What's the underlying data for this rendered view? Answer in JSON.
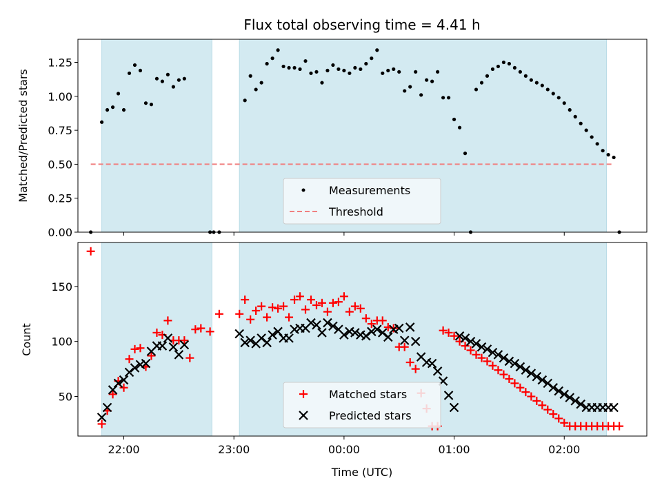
{
  "chart_data": [
    {
      "type": "scatter",
      "title": "Flux total observing time = 4.41 h",
      "xlabel": "",
      "ylabel": "Matched/Predicted stars",
      "xlim": [
        "21:35",
        "02:45"
      ],
      "ylim": [
        0,
        1.42
      ],
      "yticks": [
        "0.00",
        "0.25",
        "0.50",
        "0.75",
        "1.00",
        "1.25"
      ],
      "shaded_regions": [
        [
          "21:48",
          "22:48"
        ],
        [
          "23:03",
          "02:23"
        ]
      ],
      "shade_color": "#d3eaf1",
      "legend": {
        "position": "lower-center",
        "entries": [
          "Measurements",
          "Threshold"
        ]
      },
      "series": [
        {
          "name": "Measurements",
          "color": "#000000",
          "marker": "dot",
          "x": [
            "21:42",
            "21:48",
            "21:51",
            "21:54",
            "21:57",
            "22:00",
            "22:03",
            "22:06",
            "22:09",
            "22:12",
            "22:15",
            "22:18",
            "22:21",
            "22:24",
            "22:27",
            "22:30",
            "22:33",
            "22:47",
            "22:49",
            "22:52",
            "23:06",
            "23:09",
            "23:12",
            "23:15",
            "23:18",
            "23:21",
            "23:24",
            "23:27",
            "23:30",
            "23:33",
            "23:36",
            "23:39",
            "23:42",
            "23:45",
            "23:48",
            "23:51",
            "23:54",
            "23:57",
            "00:00",
            "00:03",
            "00:06",
            "00:09",
            "00:12",
            "00:15",
            "00:18",
            "00:21",
            "00:24",
            "00:27",
            "00:30",
            "00:33",
            "00:36",
            "00:39",
            "00:42",
            "00:45",
            "00:48",
            "00:51",
            "00:54",
            "00:57",
            "01:00",
            "01:03",
            "01:06",
            "01:09",
            "01:12",
            "01:15",
            "01:18",
            "01:21",
            "01:24",
            "01:27",
            "01:30",
            "01:33",
            "01:36",
            "01:39",
            "01:42",
            "01:45",
            "01:48",
            "01:51",
            "01:54",
            "01:57",
            "02:00",
            "02:03",
            "02:06",
            "02:09",
            "02:12",
            "02:15",
            "02:18",
            "02:21",
            "02:24",
            "02:27",
            "02:30"
          ],
          "y": [
            0.0,
            0.81,
            0.9,
            0.92,
            1.02,
            0.9,
            1.17,
            1.23,
            1.19,
            0.95,
            0.94,
            1.13,
            1.11,
            1.16,
            1.07,
            1.12,
            1.13,
            0.0,
            0.0,
            0.0,
            0.97,
            1.15,
            1.05,
            1.1,
            1.24,
            1.28,
            1.34,
            1.22,
            1.21,
            1.21,
            1.2,
            1.26,
            1.17,
            1.18,
            1.1,
            1.19,
            1.23,
            1.2,
            1.19,
            1.17,
            1.21,
            1.2,
            1.24,
            1.28,
            1.34,
            1.17,
            1.19,
            1.2,
            1.18,
            1.04,
            1.07,
            1.18,
            1.01,
            1.12,
            1.11,
            1.18,
            0.99,
            0.99,
            0.83,
            0.77,
            0.58,
            0.0,
            1.05,
            1.1,
            1.15,
            1.2,
            1.22,
            1.25,
            1.24,
            1.21,
            1.18,
            1.15,
            1.12,
            1.1,
            1.08,
            1.05,
            1.02,
            0.99,
            0.95,
            0.9,
            0.85,
            0.8,
            0.75,
            0.7,
            0.65,
            0.6,
            0.57,
            0.55,
            0.0
          ]
        },
        {
          "name": "Threshold",
          "color": "#f08080",
          "style": "dashed",
          "x": [
            "21:42",
            "02:27"
          ],
          "y": [
            0.5,
            0.5
          ]
        }
      ]
    },
    {
      "type": "scatter",
      "title": "",
      "xlabel": "Time (UTC)",
      "ylabel": "Count",
      "xlim": [
        "21:35",
        "02:45"
      ],
      "ylim": [
        14,
        190
      ],
      "yticks": [
        "50",
        "100",
        "150"
      ],
      "xticks": [
        "22:00",
        "23:00",
        "00:00",
        "01:00",
        "02:00"
      ],
      "shaded_regions": [
        [
          "21:48",
          "22:48"
        ],
        [
          "23:03",
          "02:23"
        ]
      ],
      "legend": {
        "position": "lower-center",
        "entries": [
          "Matched stars",
          "Predicted stars"
        ]
      },
      "series": [
        {
          "name": "Matched stars",
          "color": "#ff0000",
          "marker": "plus",
          "x": [
            "21:42",
            "21:48",
            "21:51",
            "21:54",
            "21:57",
            "22:00",
            "22:03",
            "22:06",
            "22:09",
            "22:12",
            "22:15",
            "22:18",
            "22:21",
            "22:24",
            "22:27",
            "22:30",
            "22:33",
            "22:36",
            "22:39",
            "22:42",
            "22:47",
            "22:52",
            "23:03",
            "23:06",
            "23:09",
            "23:12",
            "23:15",
            "23:18",
            "23:21",
            "23:24",
            "23:27",
            "23:30",
            "23:33",
            "23:36",
            "23:39",
            "23:42",
            "23:45",
            "23:48",
            "23:51",
            "23:54",
            "23:57",
            "00:00",
            "00:03",
            "00:06",
            "00:09",
            "00:12",
            "00:15",
            "00:18",
            "00:21",
            "00:24",
            "00:27",
            "00:30",
            "00:33",
            "00:36",
            "00:39",
            "00:42",
            "00:45",
            "00:48",
            "00:51",
            "00:54",
            "00:57",
            "01:00",
            "01:03",
            "01:06",
            "01:09",
            "01:12",
            "01:15",
            "01:18",
            "01:21",
            "01:24",
            "01:27",
            "01:30",
            "01:33",
            "01:36",
            "01:39",
            "01:42",
            "01:45",
            "01:48",
            "01:51",
            "01:54",
            "01:57",
            "02:00",
            "02:03",
            "02:06",
            "02:09",
            "02:12",
            "02:15",
            "02:18",
            "02:21",
            "02:24",
            "02:27",
            "02:30"
          ],
          "y": [
            182,
            25,
            37,
            52,
            64,
            58,
            84,
            93,
            94,
            77,
            87,
            108,
            106,
            119,
            101,
            101,
            101,
            85,
            111,
            112,
            109,
            125,
            125,
            138,
            120,
            128,
            132,
            122,
            131,
            130,
            132,
            122,
            138,
            141,
            129,
            138,
            133,
            135,
            127,
            135,
            136,
            141,
            127,
            132,
            130,
            121,
            116,
            119,
            119,
            113,
            112,
            95,
            95,
            81,
            75,
            53,
            39,
            23,
            23,
            110,
            108,
            105,
            100,
            96,
            92,
            88,
            85,
            82,
            78,
            74,
            70,
            66,
            62,
            58,
            54,
            50,
            46,
            42,
            38,
            34,
            30,
            26,
            23,
            23,
            23,
            23,
            23,
            23,
            23,
            23,
            23,
            23
          ]
        },
        {
          "name": "Predicted stars",
          "color": "#000000",
          "marker": "x",
          "x": [
            "21:48",
            "21:51",
            "21:54",
            "21:57",
            "22:00",
            "22:03",
            "22:06",
            "22:09",
            "22:12",
            "22:15",
            "22:18",
            "22:21",
            "22:24",
            "22:27",
            "22:30",
            "22:33",
            "23:03",
            "23:06",
            "23:09",
            "23:12",
            "23:15",
            "23:18",
            "23:21",
            "23:24",
            "23:27",
            "23:30",
            "23:33",
            "23:36",
            "23:39",
            "23:42",
            "23:45",
            "23:48",
            "23:51",
            "23:54",
            "23:57",
            "00:00",
            "00:03",
            "00:06",
            "00:09",
            "00:12",
            "00:15",
            "00:18",
            "00:21",
            "00:24",
            "00:27",
            "00:30",
            "00:33",
            "00:36",
            "00:39",
            "00:42",
            "00:45",
            "00:48",
            "00:51",
            "00:54",
            "00:57",
            "01:00",
            "01:03",
            "01:06",
            "01:09",
            "01:12",
            "01:15",
            "01:18",
            "01:21",
            "01:24",
            "01:27",
            "01:30",
            "01:33",
            "01:36",
            "01:39",
            "01:42",
            "01:45",
            "01:48",
            "01:51",
            "01:54",
            "01:57",
            "02:00",
            "02:03",
            "02:06",
            "02:09",
            "02:12",
            "02:15",
            "02:18",
            "02:21",
            "02:24",
            "02:27"
          ],
          "y": [
            31,
            40,
            56,
            62,
            65,
            72,
            76,
            79,
            80,
            91,
            96,
            96,
            103,
            95,
            88,
            97,
            107,
            99,
            101,
            98,
            103,
            99,
            106,
            109,
            103,
            103,
            111,
            112,
            112,
            117,
            115,
            108,
            117,
            114,
            111,
            106,
            109,
            108,
            106,
            105,
            109,
            111,
            108,
            104,
            111,
            112,
            101,
            113,
            100,
            86,
            81,
            80,
            73,
            64,
            51,
            40,
            105,
            103,
            100,
            98,
            95,
            93,
            90,
            88,
            85,
            82,
            80,
            77,
            74,
            71,
            68,
            65,
            62,
            58,
            55,
            52,
            49,
            46,
            43,
            40,
            40,
            40,
            40,
            40,
            40
          ]
        }
      ]
    }
  ]
}
